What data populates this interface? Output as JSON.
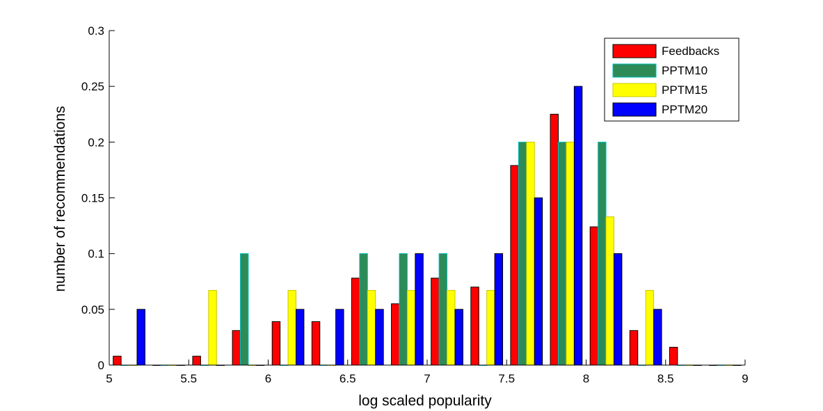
{
  "chart_data": {
    "type": "bar",
    "xlabel": "log scaled popularity",
    "ylabel": "number of recommendations",
    "xlim": [
      5,
      9
    ],
    "ylim": [
      0,
      0.3
    ],
    "x_ticks": [
      "5",
      "5.5",
      "6",
      "6.5",
      "7",
      "7.5",
      "8",
      "8.5",
      "9"
    ],
    "y_ticks": [
      "0",
      "0.05",
      "0.1",
      "0.15",
      "0.2",
      "0.25",
      "0.3"
    ],
    "grid": false,
    "legend_position": "top-right",
    "bin_centers": [
      5.125,
      5.375,
      5.625,
      5.875,
      6.125,
      6.375,
      6.625,
      6.875,
      7.125,
      7.375,
      7.625,
      7.875,
      8.125,
      8.375,
      8.625,
      8.875
    ],
    "series": [
      {
        "name": "Feedbacks",
        "color": "#ff0000",
        "edge": "#000000",
        "values": [
          0.008,
          0,
          0.008,
          0.031,
          0.039,
          0.039,
          0.078,
          0.055,
          0.078,
          0.07,
          0.179,
          0.225,
          0.124,
          0.031,
          0.016,
          0
        ]
      },
      {
        "name": "PPTM10",
        "color": "#2e8b57",
        "edge": "#00c0c0",
        "values": [
          0,
          0,
          0,
          0.1,
          0,
          0,
          0.1,
          0.1,
          0.1,
          0,
          0.2,
          0.2,
          0.2,
          0,
          0,
          0
        ]
      },
      {
        "name": "PPTM15",
        "color": "#ffff00",
        "edge": "#c8c800",
        "values": [
          0,
          0,
          0.067,
          0,
          0.067,
          0,
          0.067,
          0.067,
          0.067,
          0.067,
          0.2,
          0.2,
          0.133,
          0.067,
          0,
          0
        ]
      },
      {
        "name": "PPTM20",
        "color": "#0000ff",
        "edge": "#000000",
        "values": [
          0.05,
          0,
          0,
          0,
          0.05,
          0.05,
          0.05,
          0.1,
          0.05,
          0.1,
          0.15,
          0.25,
          0.1,
          0.05,
          0,
          0
        ]
      }
    ]
  }
}
